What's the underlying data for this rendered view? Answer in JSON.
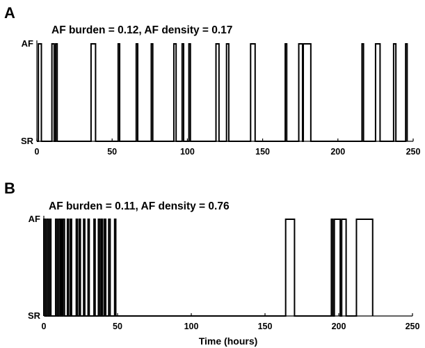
{
  "chart_data": [
    {
      "type": "line",
      "panel_label": "A",
      "annotation": "AF burden = 0.12, AF density = 0.17",
      "ytick_labels": [
        "SR",
        "AF"
      ],
      "xlim": [
        0,
        250
      ],
      "xticks": [
        0,
        50,
        100,
        150,
        200,
        250
      ],
      "xlabel": "",
      "af_episodes_hours": [
        [
          1,
          3
        ],
        [
          10,
          11.5
        ],
        [
          12.5,
          13.5
        ],
        [
          36,
          39
        ],
        [
          54,
          55
        ],
        [
          66,
          67
        ],
        [
          76,
          77
        ],
        [
          91,
          92.5
        ],
        [
          96.5,
          97.5
        ],
        [
          101,
          102
        ],
        [
          119,
          121
        ],
        [
          126,
          127.5
        ],
        [
          142,
          145
        ],
        [
          165,
          166
        ],
        [
          174,
          176.5
        ],
        [
          177,
          182
        ],
        [
          216,
          217
        ],
        [
          225,
          228
        ],
        [
          237,
          238.5
        ],
        [
          245,
          246
        ]
      ]
    },
    {
      "type": "line",
      "panel_label": "B",
      "annotation": "AF burden = 0.11, AF density = 0.76",
      "ytick_labels": [
        "SR",
        "AF"
      ],
      "xlim": [
        0,
        250
      ],
      "xticks": [
        0,
        50,
        100,
        150,
        200,
        250
      ],
      "xlabel": "Time (hours)",
      "af_episodes_hours": [
        [
          0,
          1
        ],
        [
          2,
          3
        ],
        [
          4,
          4.8
        ],
        [
          8,
          9
        ],
        [
          10,
          11
        ],
        [
          11.5,
          12.2
        ],
        [
          13,
          14
        ],
        [
          16,
          16.8
        ],
        [
          18,
          18.8
        ],
        [
          22,
          22.8
        ],
        [
          24,
          24.8
        ],
        [
          27,
          27.8
        ],
        [
          30,
          30.8
        ],
        [
          34,
          34.8
        ],
        [
          37,
          38
        ],
        [
          39,
          39.8
        ],
        [
          41,
          42
        ],
        [
          44,
          45
        ],
        [
          48,
          48.8
        ],
        [
          164,
          170
        ],
        [
          195,
          196
        ],
        [
          197,
          201
        ],
        [
          202,
          205
        ],
        [
          212,
          223
        ]
      ]
    }
  ]
}
